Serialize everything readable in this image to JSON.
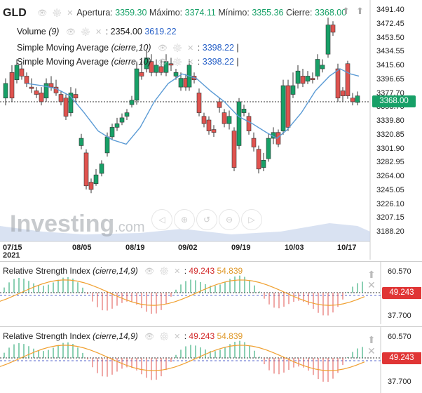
{
  "header": {
    "symbol": "GLD",
    "open_label": "Apertura:",
    "open": "3359.30",
    "high_label": "Máximo:",
    "high": "3374.11",
    "low_label": "Mínimo:",
    "low": "3355.36",
    "close_label": "Cierre:",
    "close": "3368.00"
  },
  "toolbar": {
    "up_arrow": "⬆",
    "up_arrow2": "⬆"
  },
  "volume": {
    "name": "Volume",
    "param": "(9)",
    "value1": "2354.00",
    "value2": "3619.22"
  },
  "sma1": {
    "name": "Simple Moving Average",
    "param": "(cierre,10)",
    "value": "3398.22"
  },
  "sma2": {
    "name": "Simple Moving Average",
    "param": "(cierre,10)",
    "value": "3398.22"
  },
  "price_axis": [
    "3491.40",
    "3472.45",
    "3453.50",
    "3434.55",
    "3415.60",
    "3396.65",
    "3377.70",
    "3358.75",
    "3339.80",
    "3320.85",
    "3301.90",
    "3282.95",
    "3264.00",
    "3245.05",
    "3226.10",
    "3207.15",
    "3188.20"
  ],
  "current_price": "3368.00",
  "time_axis": [
    "07/15",
    "08/05",
    "08/19",
    "09/02",
    "09/19",
    "10/03",
    "10/17"
  ],
  "time_year": "2021",
  "logo": {
    "main": "Investing",
    "suffix": ".com"
  },
  "rsi1": {
    "name": "Relative Strength Index",
    "param": "(cierre,14,9)",
    "value": "49.243",
    "signal": "54.839",
    "axis_top": "60.570",
    "axis_bottom": "37.700",
    "tag": "49.243"
  },
  "rsi2": {
    "name": "Relative Strength Index",
    "param": "(cierre,14,9)",
    "value": "49.243",
    "signal": "54.839",
    "axis_top": "60.570",
    "axis_bottom": "37.700",
    "tag": "49.243"
  },
  "colors": {
    "up": "#17a067",
    "down": "#e0534f",
    "sma": "#5b9bd5",
    "rsi_signal": "#f0a030"
  }
}
